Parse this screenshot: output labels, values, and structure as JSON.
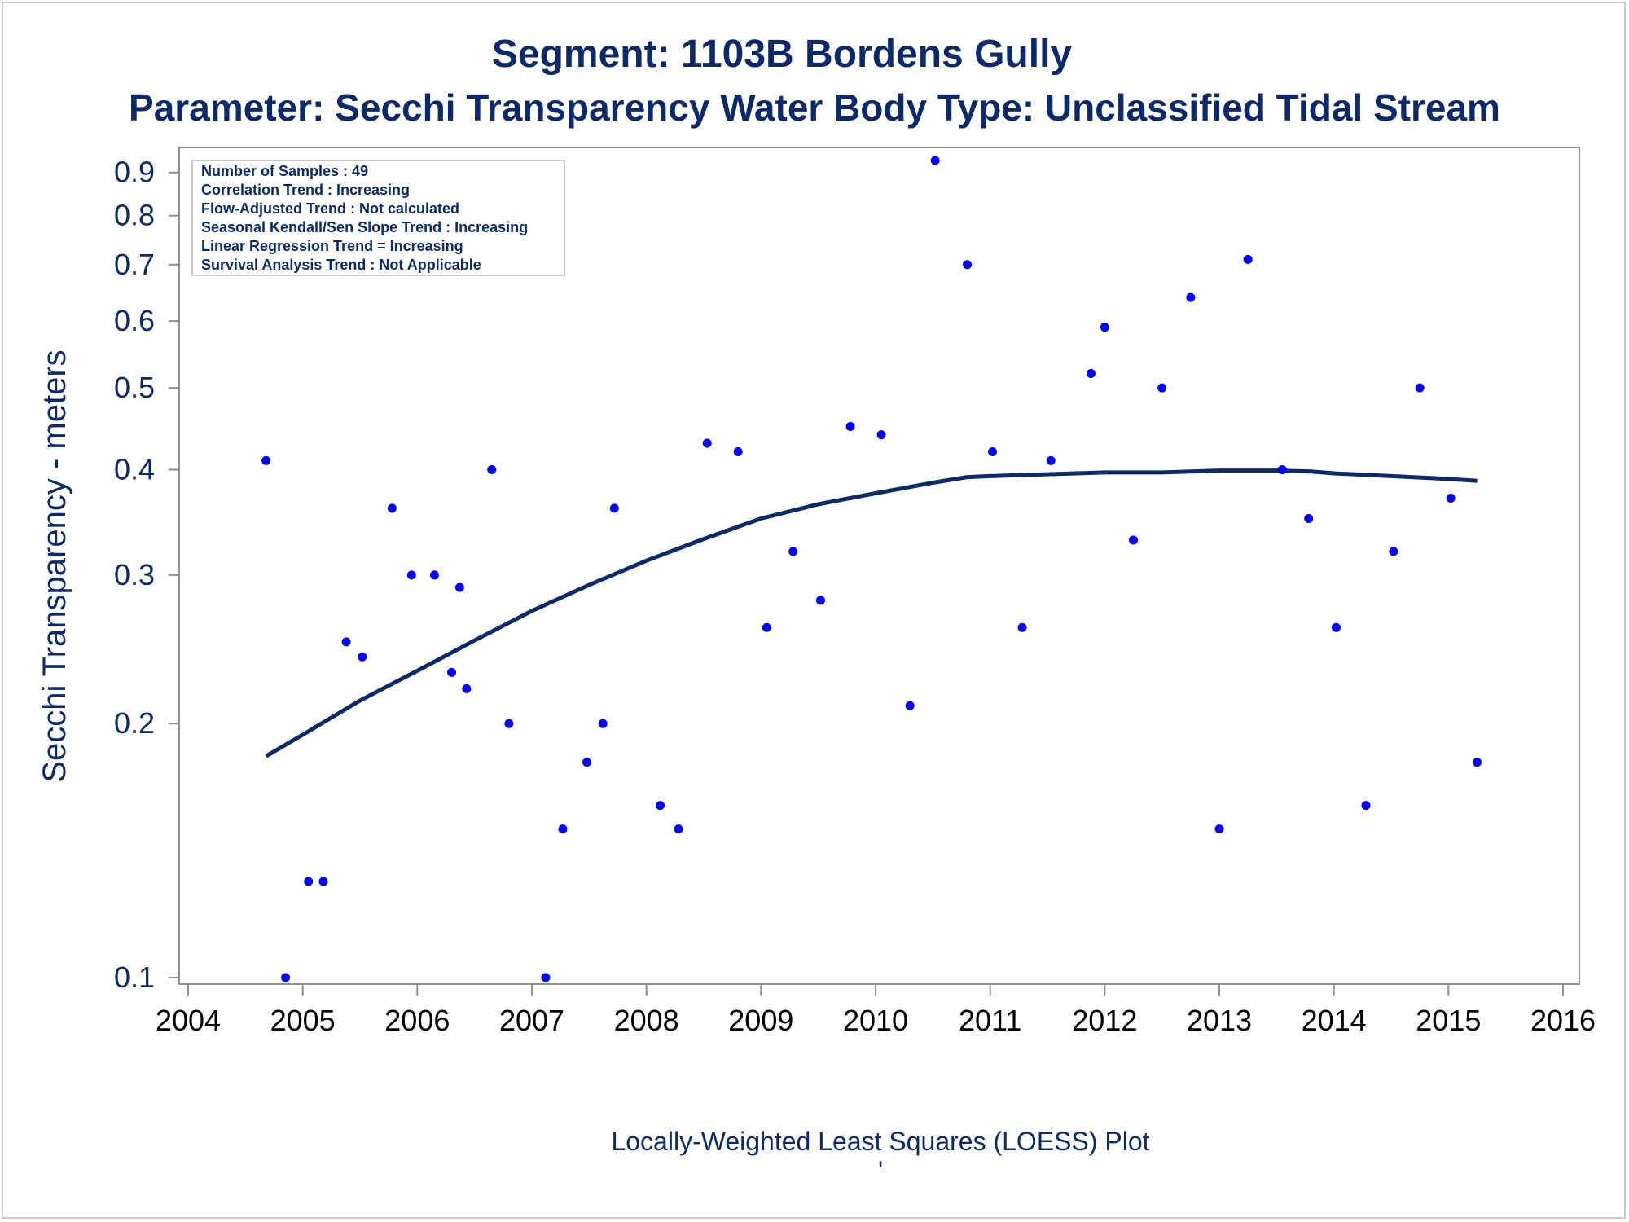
{
  "chart_data": {
    "type": "scatter",
    "title": "Segment: 1103B  Bordens Gully",
    "subtitle": "Parameter: Secchi Transparency   Water Body Type: Unclassified Tidal Stream",
    "ylabel": "Secchi Transparency - meters",
    "footer": "Locally-Weighted Least Squares (LOESS) Plot",
    "footer_mark": "'",
    "y_scale": "log",
    "xlim": [
      2004,
      2016
    ],
    "ylim": [
      0.095,
      0.95
    ],
    "x_ticks": [
      "2004",
      "2005",
      "2006",
      "2007",
      "2008",
      "2009",
      "2010",
      "2011",
      "2012",
      "2013",
      "2014",
      "2015",
      "2016"
    ],
    "y_ticks": [
      "0.1",
      "0.2",
      "0.3",
      "0.4",
      "0.5",
      "0.6",
      "0.7",
      "0.8",
      "0.9"
    ],
    "legend_position": "top-left",
    "stats": [
      "Number of Samples : 49",
      "Correlation Trend : Increasing",
      "Flow-Adjusted Trend : Not calculated",
      "Seasonal Kendall/Sen Slope Trend : Increasing",
      "Linear Regression Trend = Increasing",
      "Survival Analysis Trend : Not Applicable"
    ],
    "colors": {
      "points": "#0000ff",
      "loess": "#0c2a6b",
      "text": "#0c2a6b",
      "axis": "#909090"
    },
    "points": [
      {
        "x": 2004.68,
        "y": 0.41
      },
      {
        "x": 2004.85,
        "y": 0.1
      },
      {
        "x": 2005.05,
        "y": 0.13
      },
      {
        "x": 2005.18,
        "y": 0.13
      },
      {
        "x": 2005.38,
        "y": 0.25
      },
      {
        "x": 2005.52,
        "y": 0.24
      },
      {
        "x": 2005.78,
        "y": 0.36
      },
      {
        "x": 2005.95,
        "y": 0.3
      },
      {
        "x": 2006.15,
        "y": 0.3
      },
      {
        "x": 2006.3,
        "y": 0.23
      },
      {
        "x": 2006.37,
        "y": 0.29
      },
      {
        "x": 2006.43,
        "y": 0.22
      },
      {
        "x": 2006.65,
        "y": 0.4
      },
      {
        "x": 2006.8,
        "y": 0.2
      },
      {
        "x": 2007.12,
        "y": 0.1
      },
      {
        "x": 2007.27,
        "y": 0.15
      },
      {
        "x": 2007.48,
        "y": 0.18
      },
      {
        "x": 2007.62,
        "y": 0.2
      },
      {
        "x": 2007.72,
        "y": 0.36
      },
      {
        "x": 2008.12,
        "y": 0.16
      },
      {
        "x": 2008.28,
        "y": 0.15
      },
      {
        "x": 2008.53,
        "y": 0.43
      },
      {
        "x": 2008.8,
        "y": 0.42
      },
      {
        "x": 2009.05,
        "y": 0.26
      },
      {
        "x": 2009.28,
        "y": 0.32
      },
      {
        "x": 2009.52,
        "y": 0.28
      },
      {
        "x": 2009.78,
        "y": 0.45
      },
      {
        "x": 2010.05,
        "y": 0.44
      },
      {
        "x": 2010.3,
        "y": 0.21
      },
      {
        "x": 2010.52,
        "y": 0.93
      },
      {
        "x": 2010.8,
        "y": 0.7
      },
      {
        "x": 2011.02,
        "y": 0.42
      },
      {
        "x": 2011.28,
        "y": 0.26
      },
      {
        "x": 2011.53,
        "y": 0.41
      },
      {
        "x": 2011.88,
        "y": 0.52
      },
      {
        "x": 2012.0,
        "y": 0.59
      },
      {
        "x": 2012.25,
        "y": 0.33
      },
      {
        "x": 2012.5,
        "y": 0.5
      },
      {
        "x": 2012.75,
        "y": 0.64
      },
      {
        "x": 2013.0,
        "y": 0.15
      },
      {
        "x": 2013.25,
        "y": 0.71
      },
      {
        "x": 2013.55,
        "y": 0.4
      },
      {
        "x": 2013.78,
        "y": 0.35
      },
      {
        "x": 2014.02,
        "y": 0.26
      },
      {
        "x": 2014.28,
        "y": 0.16
      },
      {
        "x": 2014.52,
        "y": 0.32
      },
      {
        "x": 2014.75,
        "y": 0.5
      },
      {
        "x": 2015.02,
        "y": 0.37
      },
      {
        "x": 2015.25,
        "y": 0.18
      }
    ],
    "loess": [
      {
        "x": 2004.68,
        "y": 0.183
      },
      {
        "x": 2005.0,
        "y": 0.194
      },
      {
        "x": 2005.5,
        "y": 0.213
      },
      {
        "x": 2006.0,
        "y": 0.231
      },
      {
        "x": 2006.5,
        "y": 0.251
      },
      {
        "x": 2007.0,
        "y": 0.272
      },
      {
        "x": 2007.5,
        "y": 0.292
      },
      {
        "x": 2008.0,
        "y": 0.312
      },
      {
        "x": 2008.5,
        "y": 0.331
      },
      {
        "x": 2009.0,
        "y": 0.35
      },
      {
        "x": 2009.5,
        "y": 0.364
      },
      {
        "x": 2010.0,
        "y": 0.375
      },
      {
        "x": 2010.5,
        "y": 0.386
      },
      {
        "x": 2010.8,
        "y": 0.392
      },
      {
        "x": 2011.0,
        "y": 0.393
      },
      {
        "x": 2011.5,
        "y": 0.395
      },
      {
        "x": 2012.0,
        "y": 0.397
      },
      {
        "x": 2012.5,
        "y": 0.397
      },
      {
        "x": 2013.0,
        "y": 0.399
      },
      {
        "x": 2013.5,
        "y": 0.399
      },
      {
        "x": 2013.8,
        "y": 0.398
      },
      {
        "x": 2014.0,
        "y": 0.396
      },
      {
        "x": 2014.5,
        "y": 0.393
      },
      {
        "x": 2015.0,
        "y": 0.39
      },
      {
        "x": 2015.25,
        "y": 0.388
      }
    ]
  }
}
